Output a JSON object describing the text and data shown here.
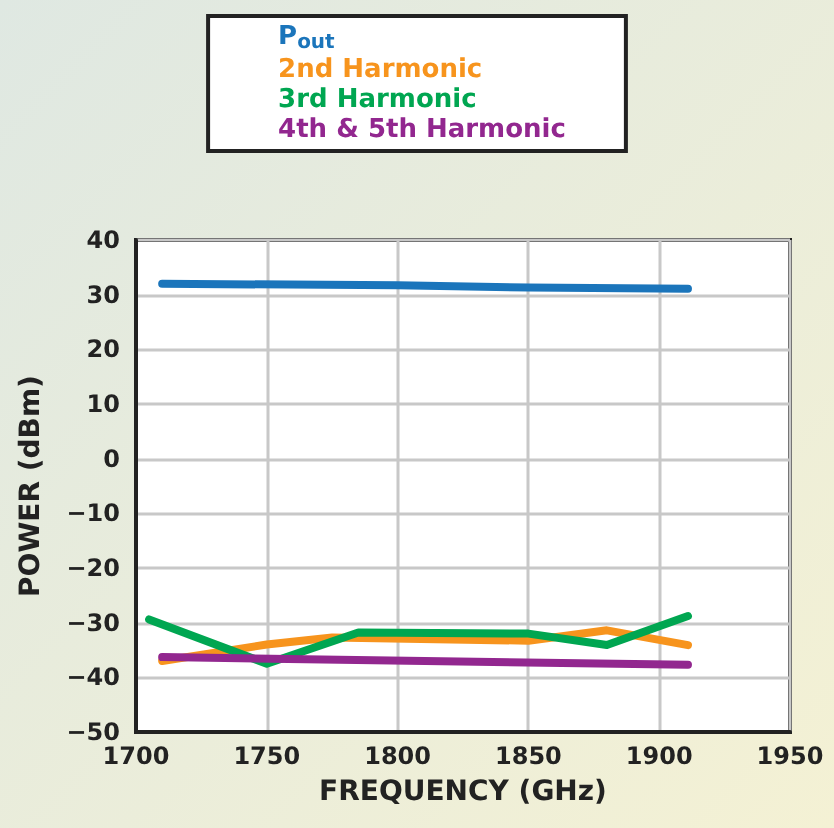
{
  "chart_data": {
    "type": "line",
    "xlabel": "FREQUENCY (GHz)",
    "ylabel": "POWER (dBm)",
    "xlim": [
      1700,
      1950
    ],
    "xticks": [
      1700,
      1750,
      1800,
      1850,
      1900,
      1950
    ],
    "ylim": [
      -50,
      40
    ],
    "yticks": [
      -50,
      -40,
      -30,
      -20,
      -10,
      0,
      10,
      20,
      30,
      40
    ],
    "grid": true,
    "legend": "top",
    "marker": "none",
    "line_style": "solid",
    "series": [
      {
        "name": "P$_{out}$",
        "color": "#1b75bb",
        "x": [
          1710,
          1800,
          1850,
          1911
        ],
        "values": [
          32,
          31.7,
          31.3,
          31.1
        ]
      },
      {
        "name": "2nd Harmonic",
        "color": "#f7941d",
        "x": [
          1710,
          1750,
          1775,
          1850,
          1880,
          1911
        ],
        "values": [
          -37,
          -34,
          -32.7,
          -33.3,
          -31.4,
          -34.1
        ]
      },
      {
        "name": "3rd Harmonic",
        "color": "#00a651",
        "x": [
          1705,
          1750,
          1785,
          1850,
          1880,
          1911
        ],
        "values": [
          -29.4,
          -37.5,
          -31.8,
          -32,
          -34.1,
          -28.8
        ]
      },
      {
        "name": "4th & 5th Harmonic",
        "color": "#92278f",
        "x": [
          1710,
          1911
        ],
        "values": [
          -36.3,
          -37.7
        ]
      }
    ]
  }
}
